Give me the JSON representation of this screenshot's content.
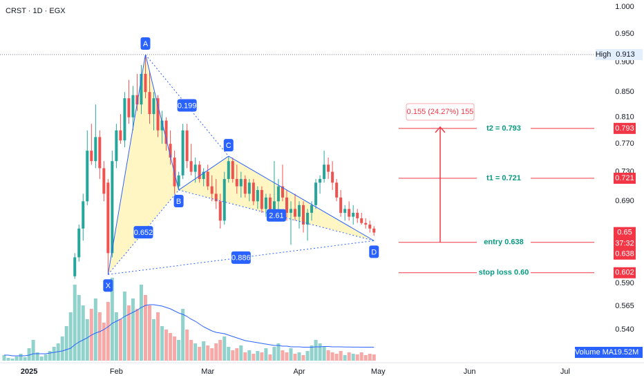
{
  "chart_data": {
    "type": "candlestick",
    "title": "CRST · 1D · EGX",
    "log_scale": true,
    "grid": false,
    "ylim": [
      0.507,
      1.0
    ],
    "yticks": [
      {
        "value": 1.0,
        "label": "1.000"
      },
      {
        "value": 0.95,
        "label": "0.950"
      },
      {
        "value": 0.9,
        "label": "0.900"
      },
      {
        "value": 0.85,
        "label": "0.850"
      },
      {
        "value": 0.81,
        "label": "0.810"
      },
      {
        "value": 0.77,
        "label": "0.770"
      },
      {
        "value": 0.73,
        "label": "0.730"
      },
      {
        "value": 0.69,
        "label": "0.690"
      },
      {
        "value": 0.59,
        "label": "0.590"
      },
      {
        "value": 0.565,
        "label": "0.565"
      },
      {
        "value": 0.54,
        "label": "0.540"
      }
    ],
    "xlim": [
      -1,
      142
    ],
    "xticks": [
      {
        "value": 6,
        "label": "2025"
      },
      {
        "value": 27,
        "label": "Feb"
      },
      {
        "value": 49,
        "label": "Mar"
      },
      {
        "value": 71,
        "label": "Apr"
      },
      {
        "value": 90,
        "label": "May"
      },
      {
        "value": 112,
        "label": "Jun"
      },
      {
        "value": 135,
        "label": "Jul"
      }
    ],
    "up_color": "#26a69a",
    "down_color": "#ef5350",
    "open": [
      null,
      null,
      null,
      null,
      null,
      null,
      null,
      null,
      null,
      null,
      null,
      null,
      null,
      null,
      null,
      null,
      null,
      0.598,
      0.62,
      0.655,
      0.69,
      0.76,
      0.745,
      0.78,
      0.735,
      0.715,
      0.625,
      0.745,
      0.79,
      0.775,
      0.84,
      0.81,
      0.845,
      0.83,
      0.88,
      0.85,
      0.815,
      0.84,
      0.79,
      0.805,
      0.77,
      0.75,
      0.71,
      0.725,
      0.79,
      0.745,
      0.73,
      0.74,
      0.72,
      0.73,
      0.71,
      0.7,
      0.69,
      0.665,
      0.72,
      0.745,
      0.72,
      0.71,
      0.72,
      0.7,
      0.715,
      0.69,
      0.705,
      0.68,
      0.695,
      0.675,
      0.69,
      0.71,
      0.695,
      0.675,
      0.68,
      0.67,
      0.685,
      0.66,
      0.675,
      0.685,
      0.715,
      0.72,
      0.74,
      0.73,
      0.715,
      0.695,
      0.675,
      0.68,
      0.67,
      0.675,
      0.668,
      0.662,
      0.66,
      0.655
    ],
    "high": [
      null,
      null,
      null,
      null,
      null,
      null,
      null,
      null,
      null,
      null,
      null,
      null,
      null,
      null,
      null,
      null,
      null,
      0.625,
      0.66,
      0.7,
      0.79,
      0.8,
      0.83,
      0.79,
      0.745,
      0.72,
      0.76,
      0.8,
      0.815,
      0.85,
      0.87,
      0.86,
      0.88,
      0.895,
      0.913,
      0.885,
      0.85,
      0.845,
      0.82,
      0.81,
      0.79,
      0.76,
      0.73,
      0.8,
      0.8,
      0.77,
      0.75,
      0.745,
      0.735,
      0.74,
      0.725,
      0.72,
      0.7,
      0.73,
      0.752,
      0.75,
      0.74,
      0.73,
      0.725,
      0.72,
      0.72,
      0.71,
      0.71,
      0.7,
      0.7,
      0.745,
      0.72,
      0.74,
      0.705,
      0.69,
      0.7,
      0.69,
      0.69,
      0.68,
      0.69,
      0.72,
      0.725,
      0.76,
      0.75,
      0.745,
      0.72,
      0.705,
      0.685,
      0.69,
      0.685,
      0.68,
      0.675,
      0.668,
      0.665,
      0.658
    ],
    "low": [
      null,
      null,
      null,
      null,
      null,
      null,
      null,
      null,
      null,
      null,
      null,
      null,
      null,
      null,
      null,
      null,
      null,
      0.595,
      0.615,
      0.64,
      0.685,
      0.74,
      0.735,
      0.72,
      0.69,
      0.6,
      0.62,
      0.735,
      0.77,
      0.765,
      0.8,
      0.79,
      0.82,
      0.815,
      0.84,
      0.8,
      0.79,
      0.78,
      0.77,
      0.76,
      0.74,
      0.7,
      0.705,
      0.72,
      0.735,
      0.725,
      0.715,
      0.715,
      0.71,
      0.705,
      0.69,
      0.68,
      0.655,
      0.66,
      0.715,
      0.715,
      0.7,
      0.695,
      0.695,
      0.69,
      0.685,
      0.68,
      0.675,
      0.67,
      0.67,
      0.67,
      0.665,
      0.69,
      0.665,
      0.635,
      0.665,
      0.655,
      0.65,
      0.64,
      0.665,
      0.68,
      0.7,
      0.715,
      0.72,
      0.705,
      0.69,
      0.67,
      0.665,
      0.665,
      0.66,
      0.662,
      0.66,
      0.655,
      0.65,
      0.646
    ],
    "close": [
      null,
      null,
      null,
      null,
      null,
      null,
      null,
      null,
      null,
      null,
      null,
      null,
      null,
      null,
      null,
      null,
      null,
      0.62,
      0.655,
      0.69,
      0.76,
      0.745,
      0.78,
      0.735,
      0.7,
      0.625,
      0.745,
      0.79,
      0.775,
      0.84,
      0.81,
      0.845,
      0.83,
      0.88,
      0.85,
      0.815,
      0.84,
      0.79,
      0.805,
      0.77,
      0.75,
      0.71,
      0.725,
      0.79,
      0.745,
      0.73,
      0.74,
      0.72,
      0.73,
      0.71,
      0.7,
      0.69,
      0.665,
      0.72,
      0.745,
      0.72,
      0.71,
      0.72,
      0.7,
      0.715,
      0.69,
      0.705,
      0.68,
      0.695,
      0.675,
      0.69,
      0.71,
      0.695,
      0.675,
      0.68,
      0.67,
      0.685,
      0.66,
      0.675,
      0.685,
      0.715,
      0.72,
      0.74,
      0.73,
      0.715,
      0.695,
      0.675,
      0.68,
      0.67,
      0.675,
      0.668,
      0.662,
      0.66,
      0.655,
      0.65
    ],
    "volume": [
      8,
      4,
      3,
      6,
      10,
      5,
      18,
      30,
      12,
      6,
      9,
      14,
      20,
      25,
      35,
      50,
      70,
      110,
      95,
      80,
      60,
      75,
      90,
      70,
      55,
      85,
      120,
      70,
      60,
      100,
      80,
      90,
      75,
      110,
      95,
      80,
      60,
      70,
      50,
      45,
      40,
      35,
      30,
      75,
      45,
      30,
      25,
      20,
      28,
      22,
      18,
      25,
      30,
      35,
      20,
      15,
      18,
      22,
      12,
      15,
      10,
      14,
      12,
      18,
      9,
      20,
      25,
      15,
      12,
      18,
      10,
      12,
      8,
      14,
      22,
      30,
      25,
      20,
      15,
      12,
      10,
      14,
      8,
      12,
      10,
      9,
      12,
      8,
      10,
      9
    ],
    "volume_ma": {
      "name": "Volume MA",
      "value": 19.52,
      "value_label": "19.52M",
      "color": "#2962ff",
      "values": [
        8,
        8,
        7,
        7,
        7,
        7,
        8,
        10,
        10,
        10,
        10,
        11,
        12,
        13,
        14,
        16,
        18,
        23,
        27,
        30,
        33,
        37,
        40,
        42,
        45,
        49,
        54,
        57,
        60,
        64,
        67,
        70,
        73,
        77,
        80,
        81,
        81,
        80,
        79,
        77,
        75,
        72,
        69,
        67,
        64,
        60,
        57,
        53,
        49,
        46,
        43,
        41,
        40,
        39,
        37,
        35,
        33,
        31,
        29,
        28,
        27,
        26,
        25,
        24,
        23,
        22,
        22,
        21,
        21,
        20,
        20,
        20,
        19.5,
        19.5,
        19.5,
        20,
        20,
        20.5,
        20.5,
        20,
        20,
        20,
        19.8,
        19.7,
        19.6,
        19.6,
        19.5,
        19.5,
        19.5,
        19.52
      ]
    },
    "high_marker": {
      "label": "High",
      "value": 0.913
    },
    "last_price": {
      "value": 0.65,
      "countdown": "37:32"
    },
    "pattern": {
      "color": "#2962ff",
      "points": [
        {
          "label": "X",
          "x": 25,
          "y": 0.6
        },
        {
          "label": "A",
          "x": 34,
          "y": 0.913
        },
        {
          "label": "B",
          "x": 42,
          "y": 0.705
        },
        {
          "label": "C",
          "x": 54,
          "y": 0.752
        },
        {
          "label": "D",
          "x": 89,
          "y": 0.64
        }
      ],
      "ratios": [
        0.199,
        0.652,
        2.61,
        0.886
      ]
    },
    "levels": [
      {
        "label": "t2 = 0.793",
        "value": 0.793
      },
      {
        "label": "t1 = 0.721",
        "value": 0.721
      },
      {
        "label": "entry 0.638",
        "value": 0.638
      },
      {
        "label": "stop loss 0.60",
        "value": 0.602
      }
    ],
    "measure": {
      "label": "0.155 (24.27%) 155"
    }
  }
}
